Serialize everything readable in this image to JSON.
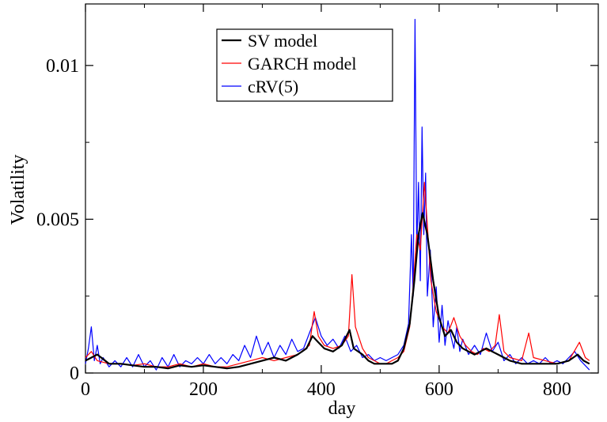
{
  "chart_data": {
    "type": "line",
    "title": "",
    "xlabel": "day",
    "ylabel": "Volatility",
    "xlim": [
      0,
      870
    ],
    "ylim": [
      0,
      0.012
    ],
    "x_ticks": [
      0,
      200,
      400,
      600,
      800
    ],
    "x_tick_labels": [
      "0",
      "200",
      "400",
      "600",
      "800"
    ],
    "y_ticks": [
      0,
      0.005,
      0.01
    ],
    "y_tick_labels": [
      "0",
      "0.005",
      "0.01"
    ],
    "grid": false,
    "legend_position": "top-center",
    "series": [
      {
        "name": "SV model",
        "color": "#000000",
        "points": [
          [
            0,
            0.0004
          ],
          [
            20,
            0.0006
          ],
          [
            40,
            0.0003
          ],
          [
            60,
            0.0003
          ],
          [
            80,
            0.00025
          ],
          [
            100,
            0.0002
          ],
          [
            120,
            0.0002
          ],
          [
            140,
            0.00015
          ],
          [
            160,
            0.00025
          ],
          [
            180,
            0.0002
          ],
          [
            200,
            0.00025
          ],
          [
            220,
            0.0002
          ],
          [
            240,
            0.00015
          ],
          [
            260,
            0.0002
          ],
          [
            280,
            0.0003
          ],
          [
            300,
            0.0004
          ],
          [
            320,
            0.0005
          ],
          [
            340,
            0.0004
          ],
          [
            360,
            0.0006
          ],
          [
            375,
            0.0008
          ],
          [
            385,
            0.0012
          ],
          [
            395,
            0.001
          ],
          [
            405,
            0.0008
          ],
          [
            420,
            0.0007
          ],
          [
            435,
            0.0009
          ],
          [
            448,
            0.0014
          ],
          [
            455,
            0.0008
          ],
          [
            470,
            0.0006
          ],
          [
            480,
            0.0004
          ],
          [
            490,
            0.0003
          ],
          [
            500,
            0.0003
          ],
          [
            510,
            0.0003
          ],
          [
            520,
            0.0003
          ],
          [
            530,
            0.0004
          ],
          [
            540,
            0.0008
          ],
          [
            550,
            0.0016
          ],
          [
            558,
            0.003
          ],
          [
            565,
            0.0045
          ],
          [
            572,
            0.0052
          ],
          [
            580,
            0.0045
          ],
          [
            590,
            0.003
          ],
          [
            600,
            0.0018
          ],
          [
            610,
            0.0012
          ],
          [
            620,
            0.0014
          ],
          [
            630,
            0.001
          ],
          [
            640,
            0.0008
          ],
          [
            650,
            0.0007
          ],
          [
            660,
            0.0006
          ],
          [
            670,
            0.0007
          ],
          [
            680,
            0.0008
          ],
          [
            690,
            0.0007
          ],
          [
            700,
            0.0006
          ],
          [
            710,
            0.0005
          ],
          [
            720,
            0.0004
          ],
          [
            740,
            0.0003
          ],
          [
            760,
            0.0003
          ],
          [
            780,
            0.0003
          ],
          [
            800,
            0.0003
          ],
          [
            820,
            0.0004
          ],
          [
            835,
            0.0006
          ],
          [
            845,
            0.0004
          ],
          [
            855,
            0.0003
          ]
        ]
      },
      {
        "name": "GARCH model",
        "color": "#ff0000",
        "points": [
          [
            0,
            0.0005
          ],
          [
            10,
            0.0007
          ],
          [
            20,
            0.0004
          ],
          [
            40,
            0.0003
          ],
          [
            60,
            0.0003
          ],
          [
            80,
            0.00025
          ],
          [
            100,
            0.0003
          ],
          [
            120,
            0.0002
          ],
          [
            140,
            0.0002
          ],
          [
            160,
            0.0003
          ],
          [
            180,
            0.0002
          ],
          [
            200,
            0.0003
          ],
          [
            220,
            0.0002
          ],
          [
            240,
            0.0002
          ],
          [
            260,
            0.0003
          ],
          [
            280,
            0.0004
          ],
          [
            300,
            0.0005
          ],
          [
            320,
            0.0004
          ],
          [
            340,
            0.0005
          ],
          [
            360,
            0.0006
          ],
          [
            380,
            0.0009
          ],
          [
            388,
            0.002
          ],
          [
            395,
            0.0012
          ],
          [
            405,
            0.0009
          ],
          [
            420,
            0.0008
          ],
          [
            435,
            0.0009
          ],
          [
            446,
            0.0012
          ],
          [
            452,
            0.0032
          ],
          [
            458,
            0.0015
          ],
          [
            470,
            0.0008
          ],
          [
            480,
            0.0005
          ],
          [
            490,
            0.0004
          ],
          [
            500,
            0.0003
          ],
          [
            510,
            0.0003
          ],
          [
            520,
            0.0004
          ],
          [
            530,
            0.0005
          ],
          [
            540,
            0.0007
          ],
          [
            550,
            0.0015
          ],
          [
            556,
            0.0028
          ],
          [
            562,
            0.0045
          ],
          [
            568,
            0.004
          ],
          [
            575,
            0.0062
          ],
          [
            580,
            0.0048
          ],
          [
            586,
            0.003
          ],
          [
            595,
            0.002
          ],
          [
            605,
            0.0015
          ],
          [
            615,
            0.0013
          ],
          [
            625,
            0.0018
          ],
          [
            635,
            0.0012
          ],
          [
            645,
            0.0009
          ],
          [
            655,
            0.0007
          ],
          [
            665,
            0.0006
          ],
          [
            675,
            0.0008
          ],
          [
            685,
            0.0007
          ],
          [
            695,
            0.0009
          ],
          [
            702,
            0.0019
          ],
          [
            710,
            0.0007
          ],
          [
            720,
            0.0005
          ],
          [
            740,
            0.0004
          ],
          [
            752,
            0.0013
          ],
          [
            760,
            0.0005
          ],
          [
            780,
            0.0004
          ],
          [
            800,
            0.0003
          ],
          [
            820,
            0.0004
          ],
          [
            838,
            0.001
          ],
          [
            848,
            0.0005
          ],
          [
            855,
            0.0004
          ]
        ]
      },
      {
        "name": "cRV(5)",
        "color": "#0000ff",
        "points": [
          [
            0,
            0.0003
          ],
          [
            5,
            0.0008
          ],
          [
            10,
            0.0015
          ],
          [
            15,
            0.0004
          ],
          [
            20,
            0.0009
          ],
          [
            25,
            0.0003
          ],
          [
            30,
            0.0005
          ],
          [
            40,
            0.0002
          ],
          [
            50,
            0.0004
          ],
          [
            60,
            0.0002
          ],
          [
            70,
            0.0005
          ],
          [
            80,
            0.0002
          ],
          [
            90,
            0.0006
          ],
          [
            100,
            0.0002
          ],
          [
            110,
            0.0004
          ],
          [
            120,
            0.0001
          ],
          [
            130,
            0.0005
          ],
          [
            140,
            0.0002
          ],
          [
            150,
            0.0006
          ],
          [
            160,
            0.0002
          ],
          [
            170,
            0.0004
          ],
          [
            180,
            0.0003
          ],
          [
            190,
            0.0005
          ],
          [
            200,
            0.0003
          ],
          [
            210,
            0.0006
          ],
          [
            220,
            0.0003
          ],
          [
            230,
            0.0005
          ],
          [
            240,
            0.0003
          ],
          [
            250,
            0.0006
          ],
          [
            260,
            0.0004
          ],
          [
            270,
            0.0009
          ],
          [
            280,
            0.0005
          ],
          [
            290,
            0.0012
          ],
          [
            300,
            0.0006
          ],
          [
            310,
            0.001
          ],
          [
            320,
            0.0005
          ],
          [
            330,
            0.0009
          ],
          [
            340,
            0.0006
          ],
          [
            350,
            0.0011
          ],
          [
            360,
            0.0007
          ],
          [
            370,
            0.0008
          ],
          [
            380,
            0.0013
          ],
          [
            390,
            0.0018
          ],
          [
            400,
            0.0012
          ],
          [
            410,
            0.0009
          ],
          [
            420,
            0.0011
          ],
          [
            430,
            0.0008
          ],
          [
            440,
            0.0012
          ],
          [
            450,
            0.0007
          ],
          [
            460,
            0.0009
          ],
          [
            470,
            0.0005
          ],
          [
            480,
            0.0006
          ],
          [
            490,
            0.0004
          ],
          [
            500,
            0.0005
          ],
          [
            510,
            0.0004
          ],
          [
            520,
            0.0005
          ],
          [
            530,
            0.0006
          ],
          [
            540,
            0.0009
          ],
          [
            548,
            0.0016
          ],
          [
            553,
            0.0045
          ],
          [
            556,
            0.0025
          ],
          [
            559,
            0.0115
          ],
          [
            562,
            0.004
          ],
          [
            565,
            0.0062
          ],
          [
            568,
            0.003
          ],
          [
            571,
            0.008
          ],
          [
            574,
            0.0045
          ],
          [
            577,
            0.0065
          ],
          [
            580,
            0.0025
          ],
          [
            585,
            0.004
          ],
          [
            590,
            0.0015
          ],
          [
            595,
            0.0028
          ],
          [
            600,
            0.001
          ],
          [
            605,
            0.0022
          ],
          [
            610,
            0.0009
          ],
          [
            615,
            0.0017
          ],
          [
            620,
            0.0012
          ],
          [
            625,
            0.0008
          ],
          [
            630,
            0.0015
          ],
          [
            635,
            0.0007
          ],
          [
            640,
            0.0011
          ],
          [
            650,
            0.0006
          ],
          [
            660,
            0.0009
          ],
          [
            670,
            0.0006
          ],
          [
            680,
            0.0013
          ],
          [
            690,
            0.0007
          ],
          [
            700,
            0.001
          ],
          [
            710,
            0.0004
          ],
          [
            720,
            0.0006
          ],
          [
            730,
            0.0003
          ],
          [
            740,
            0.0005
          ],
          [
            750,
            0.0003
          ],
          [
            760,
            0.0004
          ],
          [
            770,
            0.0003
          ],
          [
            780,
            0.0005
          ],
          [
            790,
            0.0003
          ],
          [
            800,
            0.0004
          ],
          [
            810,
            0.0003
          ],
          [
            820,
            0.0005
          ],
          [
            830,
            0.0007
          ],
          [
            840,
            0.0004
          ],
          [
            850,
            0.0002
          ],
          [
            855,
            0.0001
          ]
        ]
      }
    ]
  }
}
